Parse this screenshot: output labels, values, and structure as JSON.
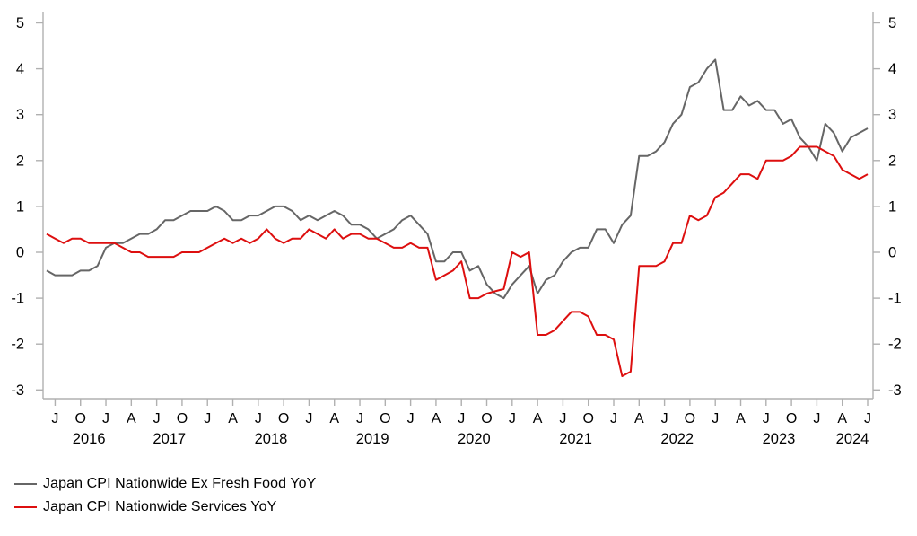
{
  "axis": {
    "line_color": "#b0b0b0",
    "label_color": "#000000",
    "tick_len": 8
  },
  "legend": {
    "items": [
      {
        "label": "Japan CPI Nationwide Ex Fresh Food YoY",
        "color": "#666666"
      },
      {
        "label": "Japan CPI Nationwide Services YoY",
        "color": "#dd0f0f"
      }
    ]
  },
  "chart_data": {
    "type": "line",
    "title": "",
    "xlabel": "",
    "ylabel": "",
    "grid": false,
    "legend_position": "bottom-left",
    "ylim": [
      -3,
      5
    ],
    "y_ticks": [
      5,
      4,
      3,
      2,
      1,
      0,
      -1,
      -2,
      -3
    ],
    "y_axis_sides": [
      "left",
      "right"
    ],
    "start_month": "2016-06",
    "end_month": "2024-07",
    "x_tick_frequency": "quarterly",
    "x_ticks": [
      {
        "i": 1,
        "label": "J"
      },
      {
        "i": 4,
        "label": "O"
      },
      {
        "i": 7,
        "label": "J"
      },
      {
        "i": 10,
        "label": "A"
      },
      {
        "i": 13,
        "label": "J"
      },
      {
        "i": 16,
        "label": "O"
      },
      {
        "i": 19,
        "label": "J"
      },
      {
        "i": 22,
        "label": "A"
      },
      {
        "i": 25,
        "label": "J"
      },
      {
        "i": 28,
        "label": "O"
      },
      {
        "i": 31,
        "label": "J"
      },
      {
        "i": 34,
        "label": "A"
      },
      {
        "i": 37,
        "label": "J"
      },
      {
        "i": 40,
        "label": "O"
      },
      {
        "i": 43,
        "label": "J"
      },
      {
        "i": 46,
        "label": "A"
      },
      {
        "i": 49,
        "label": "J"
      },
      {
        "i": 52,
        "label": "O"
      },
      {
        "i": 55,
        "label": "J"
      },
      {
        "i": 58,
        "label": "A"
      },
      {
        "i": 61,
        "label": "J"
      },
      {
        "i": 64,
        "label": "O"
      },
      {
        "i": 67,
        "label": "J"
      },
      {
        "i": 70,
        "label": "A"
      },
      {
        "i": 73,
        "label": "J"
      },
      {
        "i": 76,
        "label": "O"
      },
      {
        "i": 79,
        "label": "J"
      },
      {
        "i": 82,
        "label": "A"
      },
      {
        "i": 85,
        "label": "J"
      },
      {
        "i": 88,
        "label": "O"
      },
      {
        "i": 91,
        "label": "J"
      },
      {
        "i": 94,
        "label": "A"
      },
      {
        "i": 97,
        "label": "J"
      }
    ],
    "year_labels": [
      {
        "year": "2016",
        "i": 5.0
      },
      {
        "year": "2017",
        "i": 14.5
      },
      {
        "year": "2018",
        "i": 26.5
      },
      {
        "year": "2019",
        "i": 38.5
      },
      {
        "year": "2020",
        "i": 50.5
      },
      {
        "year": "2021",
        "i": 62.5
      },
      {
        "year": "2022",
        "i": 74.5
      },
      {
        "year": "2023",
        "i": 86.5
      },
      {
        "year": "2024",
        "i": 95.2
      }
    ],
    "series": [
      {
        "name": "Japan CPI Nationwide Ex Fresh Food YoY",
        "color": "#666666",
        "values": [
          -0.4,
          -0.5,
          -0.5,
          -0.5,
          -0.4,
          -0.4,
          -0.3,
          0.1,
          0.2,
          0.2,
          0.3,
          0.4,
          0.4,
          0.5,
          0.7,
          0.7,
          0.8,
          0.9,
          0.9,
          0.9,
          1.0,
          0.9,
          0.7,
          0.7,
          0.8,
          0.8,
          0.9,
          1.0,
          1.0,
          0.9,
          0.7,
          0.8,
          0.7,
          0.8,
          0.9,
          0.8,
          0.6,
          0.6,
          0.5,
          0.3,
          0.4,
          0.5,
          0.7,
          0.8,
          0.6,
          0.4,
          -0.2,
          -0.2,
          0.0,
          0.0,
          -0.4,
          -0.3,
          -0.7,
          -0.9,
          -1.0,
          -0.7,
          -0.5,
          -0.3,
          -0.9,
          -0.6,
          -0.5,
          -0.2,
          0.0,
          0.1,
          0.1,
          0.5,
          0.5,
          0.2,
          0.6,
          0.8,
          2.1,
          2.1,
          2.2,
          2.4,
          2.8,
          3.0,
          3.6,
          3.7,
          4.0,
          4.2,
          3.1,
          3.1,
          3.4,
          3.2,
          3.3,
          3.1,
          3.1,
          2.8,
          2.9,
          2.5,
          2.3,
          2.0,
          2.8,
          2.6,
          2.2,
          2.5,
          2.6,
          2.7
        ]
      },
      {
        "name": "Japan CPI Nationwide Services YoY",
        "color": "#dd0f0f",
        "values": [
          0.4,
          0.3,
          0.2,
          0.3,
          0.3,
          0.2,
          0.2,
          0.2,
          0.2,
          0.1,
          0.0,
          0.0,
          -0.1,
          -0.1,
          -0.1,
          -0.1,
          0.0,
          0.0,
          0.0,
          0.1,
          0.2,
          0.3,
          0.2,
          0.3,
          0.2,
          0.3,
          0.5,
          0.3,
          0.2,
          0.3,
          0.3,
          0.5,
          0.4,
          0.3,
          0.5,
          0.3,
          0.4,
          0.4,
          0.3,
          0.3,
          0.2,
          0.1,
          0.1,
          0.2,
          0.1,
          0.1,
          -0.6,
          -0.5,
          -0.4,
          -0.2,
          -1.0,
          -1.0,
          -0.9,
          -0.85,
          -0.8,
          0.0,
          -0.1,
          0.0,
          -1.8,
          -1.8,
          -1.7,
          -1.5,
          -1.3,
          -1.3,
          -1.4,
          -1.8,
          -1.8,
          -1.9,
          -2.7,
          -2.6,
          -0.3,
          -0.3,
          -0.3,
          -0.2,
          0.2,
          0.2,
          0.8,
          0.7,
          0.8,
          1.2,
          1.3,
          1.5,
          1.7,
          1.7,
          1.6,
          2.0,
          2.0,
          2.0,
          2.1,
          2.3,
          2.3,
          2.3,
          2.2,
          2.1,
          1.8,
          1.7,
          1.6,
          1.7
        ]
      }
    ]
  }
}
